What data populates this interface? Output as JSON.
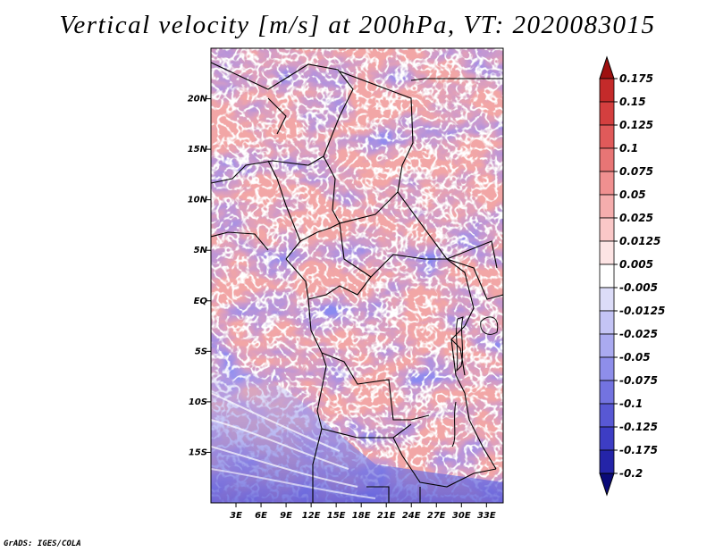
{
  "title": "Vertical velocity [m/s] at 200hPa, VT: 2020083015",
  "credit": "GrADS: IGES/COLA",
  "map": {
    "lon_ticks": [
      "3E",
      "6E",
      "9E",
      "12E",
      "15E",
      "18E",
      "21E",
      "24E",
      "27E",
      "30E",
      "33E"
    ],
    "lat_ticks": [
      "20N",
      "15N",
      "10N",
      "5N",
      "EQ",
      "5S",
      "10S",
      "15S"
    ],
    "extent": {
      "lon_min": 0,
      "lon_max": 35,
      "lat_min": -20,
      "lat_max": 25
    }
  },
  "colorbar": {
    "labels": [
      "0.175",
      "0.15",
      "0.125",
      "0.1",
      "0.075",
      "0.05",
      "0.025",
      "0.0125",
      "0.005",
      "-0.005",
      "-0.0125",
      "-0.025",
      "-0.05",
      "-0.075",
      "-0.1",
      "-0.125",
      "-0.175",
      "-0.2"
    ],
    "colors": [
      "#b01c1c",
      "#c42a2a",
      "#d43f3f",
      "#e05a5a",
      "#e87575",
      "#f09090",
      "#f5adad",
      "#fac8c8",
      "#fde4e4",
      "#ffffff",
      "#dcdcf8",
      "#c4c4f5",
      "#aaaaf0",
      "#8e8eea",
      "#7373e0",
      "#5858d4",
      "#3d3dc4",
      "#2424a8",
      "#12128c"
    ],
    "top_color": "#9e1010",
    "bottom_color": "#0a0a78"
  }
}
